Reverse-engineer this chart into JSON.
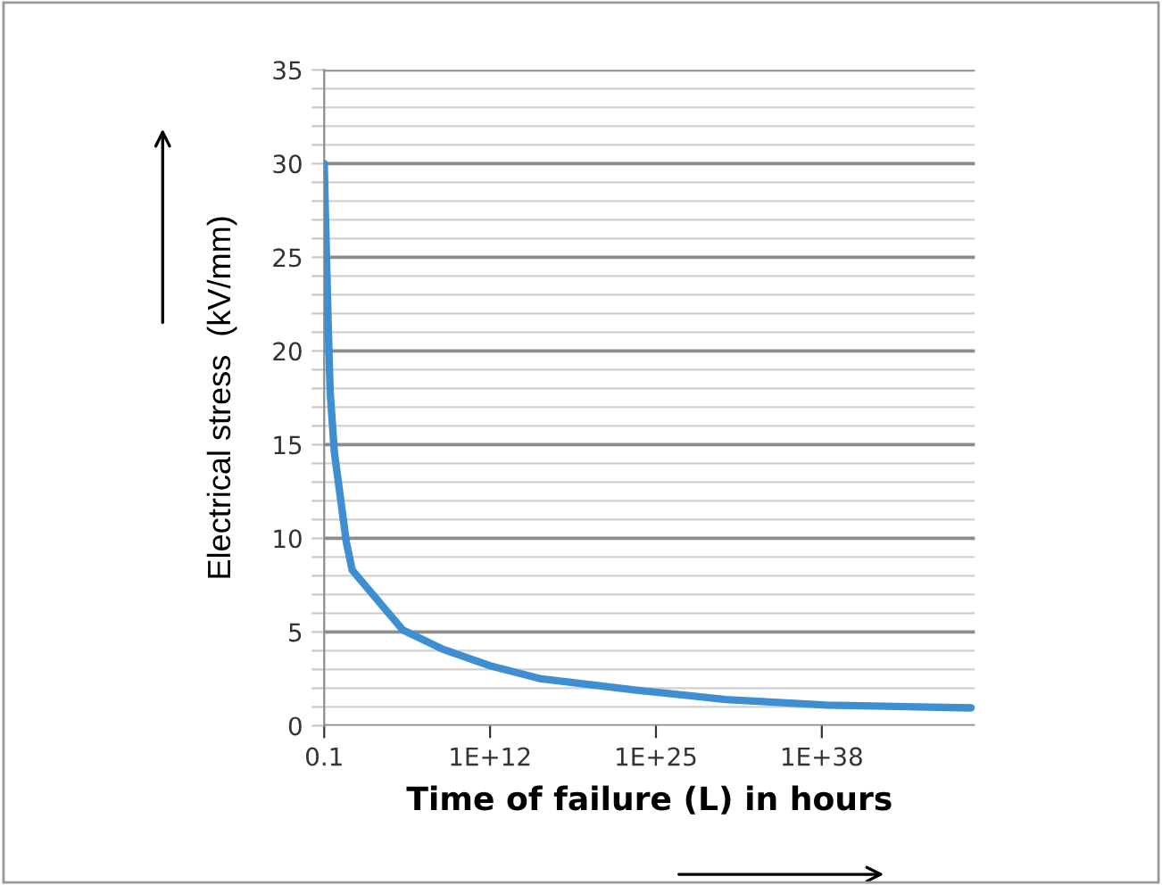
{
  "chart_data": {
    "type": "line",
    "xlabel": "Time of failure (L) in hours",
    "ylabel": "Electrical stress  (kV/mm)",
    "x": [
      0.1,
      0.124,
      0.213,
      0.294,
      0.625,
      5.4,
      15.8,
      150000,
      170000000,
      1000000000000.0,
      1e+16,
      3e+23,
      3e+30,
      2.5e+38,
      5e+49
    ],
    "series": [
      {
        "color": "#3d8fd1",
        "values": [
          30,
          27.3,
          21,
          17.8,
          14.6,
          9.8,
          8.3,
          5.1,
          4.1,
          3.2,
          2.5,
          1.9,
          1.4,
          1.1,
          0.95
        ]
      }
    ],
    "log": "x",
    "xlim": [
      0.1,
      1e+50
    ],
    "xticks": [
      0.1,
      {
        "value": 1000000000000.0,
        "label": "1E+12"
      },
      {
        "value": 1e+25,
        "label": "1E+25"
      },
      {
        "value": 1e+38,
        "label": "1E+38"
      }
    ],
    "ylim": [
      0,
      35
    ],
    "yticks": [
      0,
      {
        "value": 1,
        "label": null
      },
      {
        "value": 2,
        "label": null
      },
      {
        "value": 3,
        "label": null
      },
      {
        "value": 4,
        "label": null
      },
      5,
      {
        "value": 6,
        "label": null
      },
      {
        "value": 7,
        "label": null
      },
      {
        "value": 8,
        "label": null
      },
      {
        "value": 9,
        "label": null
      },
      10,
      {
        "value": 11,
        "label": null
      },
      {
        "value": 12,
        "label": null
      },
      {
        "value": 13,
        "label": null
      },
      {
        "value": 14,
        "label": null
      },
      15,
      {
        "value": 16,
        "label": null
      },
      {
        "value": 17,
        "label": null
      },
      {
        "value": 18,
        "label": null
      },
      {
        "value": 19,
        "label": null
      },
      20,
      {
        "value": 21,
        "label": null
      },
      {
        "value": 22,
        "label": null
      },
      {
        "value": 23,
        "label": null
      },
      {
        "value": 24,
        "label": null
      },
      25,
      {
        "value": 26,
        "label": null
      },
      {
        "value": 27,
        "label": null
      },
      {
        "value": 28,
        "label": null
      },
      {
        "value": 29,
        "label": null
      },
      30,
      {
        "value": 31,
        "label": null
      },
      {
        "value": 32,
        "label": null
      },
      {
        "value": 33,
        "label": null
      },
      {
        "value": 34,
        "label": null
      },
      35
    ],
    "grid": "y",
    "marker": "none",
    "line_style": "solid"
  }
}
